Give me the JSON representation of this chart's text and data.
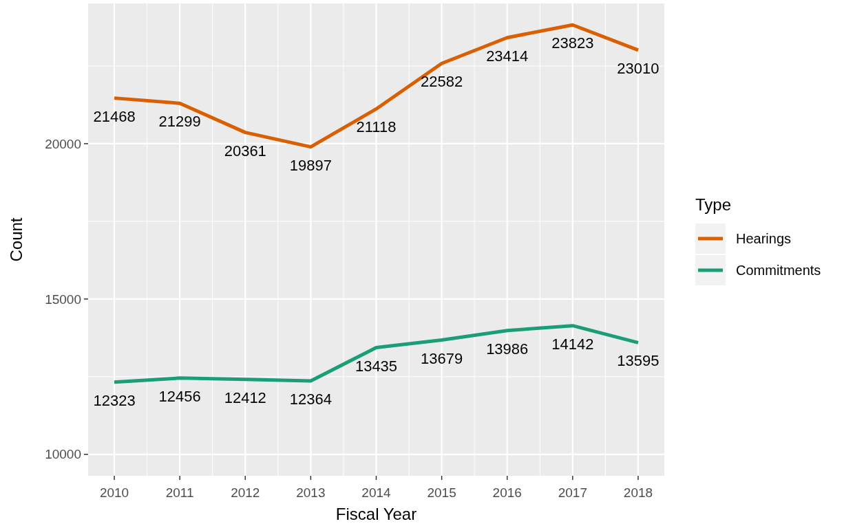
{
  "chart_data": {
    "type": "line",
    "xlabel": "Fiscal Year",
    "ylabel": "Count",
    "legend_title": "Type",
    "x": [
      2010,
      2011,
      2012,
      2013,
      2014,
      2015,
      2016,
      2017,
      2018
    ],
    "series": [
      {
        "name": "Hearings",
        "color": "#d95f02",
        "values": [
          21468,
          21299,
          20361,
          19897,
          21118,
          22582,
          23414,
          23823,
          23010
        ]
      },
      {
        "name": "Commitments",
        "color": "#1b9e77",
        "values": [
          12323,
          12456,
          12412,
          12364,
          13435,
          13679,
          13986,
          14142,
          13595
        ]
      }
    ],
    "xlim": [
      2009.6,
      2018.4
    ],
    "xticks": [
      2010,
      2011,
      2012,
      2013,
      2014,
      2015,
      2016,
      2017,
      2018
    ],
    "ylim": [
      9309,
      24514
    ],
    "yticks": [
      10000,
      15000,
      20000
    ],
    "grid": true,
    "legend": "right",
    "data_labels": true,
    "marker": "none",
    "line_style": "solid"
  }
}
